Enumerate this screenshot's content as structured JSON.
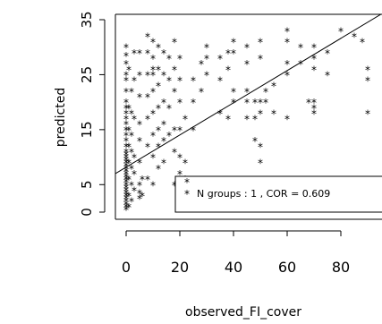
{
  "chart_data": {
    "type": "scatter",
    "xlabel": "observed_FI_cover",
    "ylabel": "predicted",
    "xlim": [
      -4,
      95
    ],
    "ylim": [
      -1,
      35
    ],
    "x_ticks": [
      0,
      20,
      40,
      60,
      80
    ],
    "x_tick_labels": [
      "0",
      "20",
      "40",
      "60",
      "80"
    ],
    "y_ticks": [
      0,
      5,
      15,
      25,
      35
    ],
    "y_tick_labels": [
      "0",
      "5",
      "15",
      "25",
      "35"
    ],
    "marker": "*",
    "legend_text": "N groups :  1 , COR = 0.609",
    "legend_marker": "*",
    "fit_line": {
      "x": [
        -4,
        95
      ],
      "y": [
        7,
        36
      ]
    },
    "points": [
      {
        "x": 0,
        "y": 0.5
      },
      {
        "x": 0,
        "y": 1
      },
      {
        "x": 0,
        "y": 1.5
      },
      {
        "x": 0,
        "y": 2
      },
      {
        "x": 0,
        "y": 2.5
      },
      {
        "x": 0,
        "y": 3
      },
      {
        "x": 0,
        "y": 3.5
      },
      {
        "x": 0,
        "y": 4
      },
      {
        "x": 0,
        "y": 4.5
      },
      {
        "x": 0,
        "y": 5
      },
      {
        "x": 0,
        "y": 5.5
      },
      {
        "x": 0,
        "y": 6
      },
      {
        "x": 0,
        "y": 6.5
      },
      {
        "x": 0,
        "y": 7
      },
      {
        "x": 0,
        "y": 7.5
      },
      {
        "x": 0,
        "y": 8
      },
      {
        "x": 0,
        "y": 8.5
      },
      {
        "x": 0,
        "y": 9
      },
      {
        "x": 0,
        "y": 9.5
      },
      {
        "x": 0,
        "y": 10
      },
      {
        "x": 0,
        "y": 10.5
      },
      {
        "x": 0,
        "y": 11
      },
      {
        "x": 0,
        "y": 12
      },
      {
        "x": 0,
        "y": 13
      },
      {
        "x": 0,
        "y": 14
      },
      {
        "x": 0,
        "y": 15
      },
      {
        "x": 0,
        "y": 16
      },
      {
        "x": 0,
        "y": 17
      },
      {
        "x": 0,
        "y": 18
      },
      {
        "x": 0,
        "y": 19
      },
      {
        "x": 0,
        "y": 20
      },
      {
        "x": 0,
        "y": 22
      },
      {
        "x": 0,
        "y": 24
      },
      {
        "x": 0,
        "y": 25
      },
      {
        "x": 0,
        "y": 27
      },
      {
        "x": 0,
        "y": 28.5
      },
      {
        "x": 0,
        "y": 30
      },
      {
        "x": 1,
        "y": 1
      },
      {
        "x": 1,
        "y": 3
      },
      {
        "x": 1,
        "y": 6
      },
      {
        "x": 1,
        "y": 9
      },
      {
        "x": 1,
        "y": 12
      },
      {
        "x": 1,
        "y": 15
      },
      {
        "x": 1,
        "y": 19
      },
      {
        "x": 1,
        "y": 26
      },
      {
        "x": 2,
        "y": 2
      },
      {
        "x": 2,
        "y": 5
      },
      {
        "x": 2,
        "y": 8
      },
      {
        "x": 2,
        "y": 11
      },
      {
        "x": 2,
        "y": 14
      },
      {
        "x": 2,
        "y": 18
      },
      {
        "x": 2,
        "y": 22
      },
      {
        "x": 3,
        "y": 4
      },
      {
        "x": 3,
        "y": 7
      },
      {
        "x": 3,
        "y": 10
      },
      {
        "x": 3,
        "y": 17
      },
      {
        "x": 3,
        "y": 24
      },
      {
        "x": 3,
        "y": 29
      },
      {
        "x": 5,
        "y": 2.5
      },
      {
        "x": 5,
        "y": 3.5
      },
      {
        "x": 5,
        "y": 5
      },
      {
        "x": 5,
        "y": 9
      },
      {
        "x": 5,
        "y": 13
      },
      {
        "x": 5,
        "y": 16
      },
      {
        "x": 5,
        "y": 21
      },
      {
        "x": 5,
        "y": 25
      },
      {
        "x": 5,
        "y": 29
      },
      {
        "x": 6,
        "y": 3
      },
      {
        "x": 6,
        "y": 6
      },
      {
        "x": 8,
        "y": 6
      },
      {
        "x": 8,
        "y": 12
      },
      {
        "x": 8,
        "y": 17
      },
      {
        "x": 8,
        "y": 21
      },
      {
        "x": 8,
        "y": 25
      },
      {
        "x": 8,
        "y": 29
      },
      {
        "x": 8,
        "y": 32
      },
      {
        "x": 10,
        "y": 5
      },
      {
        "x": 10,
        "y": 10
      },
      {
        "x": 10,
        "y": 14
      },
      {
        "x": 10,
        "y": 18
      },
      {
        "x": 10,
        "y": 22
      },
      {
        "x": 10,
        "y": 25
      },
      {
        "x": 10,
        "y": 26
      },
      {
        "x": 10,
        "y": 28
      },
      {
        "x": 10,
        "y": 31
      },
      {
        "x": 12,
        "y": 8
      },
      {
        "x": 12,
        "y": 12
      },
      {
        "x": 12,
        "y": 15
      },
      {
        "x": 12,
        "y": 19
      },
      {
        "x": 12,
        "y": 23
      },
      {
        "x": 12,
        "y": 26
      },
      {
        "x": 12,
        "y": 30
      },
      {
        "x": 14,
        "y": 9
      },
      {
        "x": 14,
        "y": 13
      },
      {
        "x": 14,
        "y": 16
      },
      {
        "x": 14,
        "y": 20
      },
      {
        "x": 14,
        "y": 25
      },
      {
        "x": 14,
        "y": 29
      },
      {
        "x": 16,
        "y": 14
      },
      {
        "x": 16,
        "y": 19
      },
      {
        "x": 16,
        "y": 24
      },
      {
        "x": 16,
        "y": 28
      },
      {
        "x": 18,
        "y": 5
      },
      {
        "x": 18,
        "y": 11
      },
      {
        "x": 18,
        "y": 15
      },
      {
        "x": 18,
        "y": 22
      },
      {
        "x": 18,
        "y": 26
      },
      {
        "x": 18,
        "y": 31
      },
      {
        "x": 20,
        "y": 3
      },
      {
        "x": 20,
        "y": 7
      },
      {
        "x": 20,
        "y": 10
      },
      {
        "x": 20,
        "y": 15
      },
      {
        "x": 20,
        "y": 20
      },
      {
        "x": 20,
        "y": 24
      },
      {
        "x": 20,
        "y": 28
      },
      {
        "x": 22,
        "y": 6
      },
      {
        "x": 22,
        "y": 9
      },
      {
        "x": 22,
        "y": 17
      },
      {
        "x": 25,
        "y": 15
      },
      {
        "x": 25,
        "y": 20
      },
      {
        "x": 25,
        "y": 24
      },
      {
        "x": 28,
        "y": 22
      },
      {
        "x": 28,
        "y": 27
      },
      {
        "x": 30,
        "y": 25
      },
      {
        "x": 30,
        "y": 28
      },
      {
        "x": 30,
        "y": 30
      },
      {
        "x": 35,
        "y": 18
      },
      {
        "x": 35,
        "y": 24
      },
      {
        "x": 35,
        "y": 28
      },
      {
        "x": 38,
        "y": 17
      },
      {
        "x": 38,
        "y": 26
      },
      {
        "x": 38,
        "y": 29
      },
      {
        "x": 40,
        "y": 20
      },
      {
        "x": 40,
        "y": 22
      },
      {
        "x": 40,
        "y": 29
      },
      {
        "x": 40,
        "y": 31
      },
      {
        "x": 45,
        "y": 17
      },
      {
        "x": 45,
        "y": 20
      },
      {
        "x": 45,
        "y": 22
      },
      {
        "x": 45,
        "y": 27
      },
      {
        "x": 45,
        "y": 30
      },
      {
        "x": 48,
        "y": 13
      },
      {
        "x": 48,
        "y": 17
      },
      {
        "x": 48,
        "y": 20
      },
      {
        "x": 50,
        "y": 9
      },
      {
        "x": 50,
        "y": 12
      },
      {
        "x": 50,
        "y": 18
      },
      {
        "x": 50,
        "y": 20
      },
      {
        "x": 50,
        "y": 28
      },
      {
        "x": 50,
        "y": 31
      },
      {
        "x": 52,
        "y": 20
      },
      {
        "x": 52,
        "y": 22
      },
      {
        "x": 55,
        "y": 18
      },
      {
        "x": 55,
        "y": 23
      },
      {
        "x": 60,
        "y": 17
      },
      {
        "x": 60,
        "y": 25
      },
      {
        "x": 60,
        "y": 27
      },
      {
        "x": 60,
        "y": 31
      },
      {
        "x": 60,
        "y": 33
      },
      {
        "x": 65,
        "y": 27
      },
      {
        "x": 65,
        "y": 30
      },
      {
        "x": 68,
        "y": 20
      },
      {
        "x": 70,
        "y": 18
      },
      {
        "x": 70,
        "y": 19
      },
      {
        "x": 70,
        "y": 20
      },
      {
        "x": 70,
        "y": 26
      },
      {
        "x": 70,
        "y": 28
      },
      {
        "x": 70,
        "y": 30
      },
      {
        "x": 75,
        "y": 25
      },
      {
        "x": 75,
        "y": 29
      },
      {
        "x": 80,
        "y": 33
      },
      {
        "x": 85,
        "y": 32
      },
      {
        "x": 88,
        "y": 31
      },
      {
        "x": 90,
        "y": 18
      },
      {
        "x": 90,
        "y": 24
      },
      {
        "x": 90,
        "y": 26
      }
    ]
  }
}
